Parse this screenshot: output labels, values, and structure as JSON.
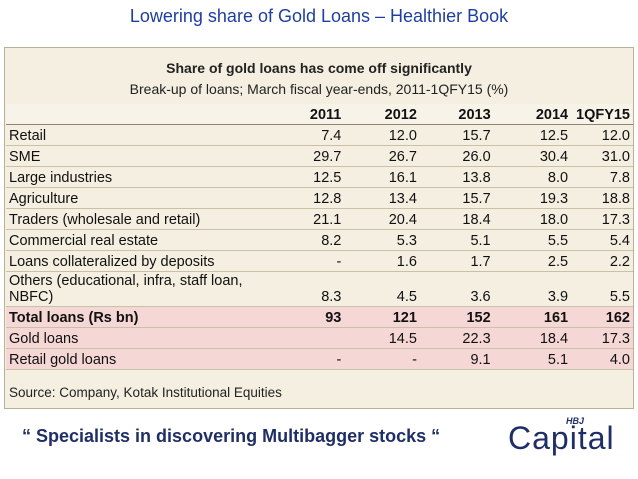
{
  "header": {
    "title": "Lowering share of Gold Loans – Healthier Book"
  },
  "panel": {
    "title": "Share of gold loans has come off significantly",
    "subtitle": "Break-up of loans; March fiscal year-ends, 2011-1QFY15 (%)"
  },
  "table": {
    "columns": [
      "2011",
      "2012",
      "2013",
      "2014",
      "1QFY15"
    ],
    "rows": [
      {
        "label": "Retail",
        "cells": [
          "7.4",
          "12.0",
          "15.7",
          "12.5",
          "12.0"
        ]
      },
      {
        "label": "SME",
        "cells": [
          "29.7",
          "26.7",
          "26.0",
          "30.4",
          "31.0"
        ]
      },
      {
        "label": "Large industries",
        "cells": [
          "12.5",
          "16.1",
          "13.8",
          "8.0",
          "7.8"
        ]
      },
      {
        "label": "Agriculture",
        "cells": [
          "12.8",
          "13.4",
          "15.7",
          "19.3",
          "18.8"
        ]
      },
      {
        "label": "Traders (wholesale and retail)",
        "cells": [
          "21.1",
          "20.4",
          "18.4",
          "18.0",
          "17.3"
        ]
      },
      {
        "label": "Commercial real estate",
        "cells": [
          "8.2",
          "5.3",
          "5.1",
          "5.5",
          "5.4"
        ]
      },
      {
        "label": "Loans collateralized by deposits",
        "cells": [
          "-",
          "1.6",
          "1.7",
          "2.5",
          "2.2"
        ]
      },
      {
        "label": "Others (educational, infra, staff loan, NBFC)",
        "cells": [
          "8.3",
          "4.5",
          "3.6",
          "3.9",
          "5.5"
        ]
      },
      {
        "label": "Total loans (Rs bn)",
        "cells": [
          "93",
          "121",
          "152",
          "161",
          "162"
        ]
      },
      {
        "label": "Gold loans",
        "cells": [
          null,
          "14.5",
          "22.3",
          "18.4",
          "17.3"
        ]
      },
      {
        "label": "Retail gold loans",
        "cells": [
          "-",
          "-",
          "9.1",
          "5.1",
          "4.0"
        ]
      }
    ]
  },
  "source": "Source: Company, Kotak Institutional Equities",
  "footer": {
    "tagline": "“ Specialists in discovering Multibagger stocks “",
    "logo_top": "HBJ",
    "logo_main": "Capital"
  }
}
